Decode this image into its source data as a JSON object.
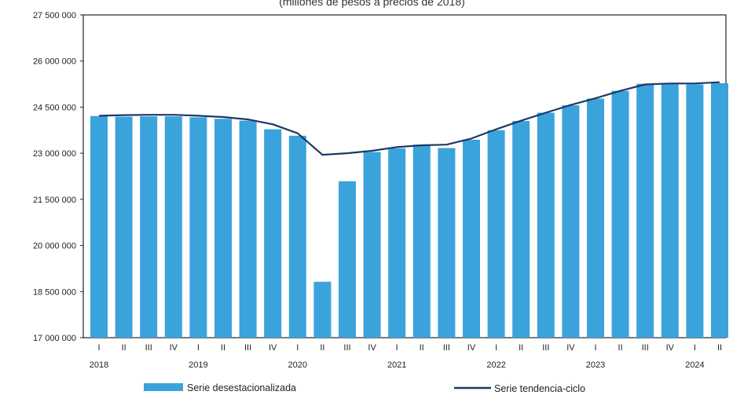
{
  "chart_data": {
    "type": "bar",
    "subtitle": "(millones de pesos a precios de 2018)",
    "ylim": [
      17000000,
      27500000
    ],
    "yticks": [
      "27 500 000",
      "26 000 000",
      "24 500 000",
      "23 000 000",
      "21 500 000",
      "20 000 000",
      "18 500 000",
      "17 000 000"
    ],
    "ytick_values": [
      27500000,
      26000000,
      24500000,
      23000000,
      21500000,
      20000000,
      18500000,
      17000000
    ],
    "categories": [
      "I",
      "II",
      "III",
      "IV",
      "I",
      "II",
      "III",
      "IV",
      "I",
      "II",
      "III",
      "IV",
      "I",
      "II",
      "III",
      "IV",
      "I",
      "II",
      "III",
      "IV",
      "I",
      "II",
      "III",
      "IV",
      "I",
      "II"
    ],
    "years": [
      {
        "label": "2018",
        "start_index": 0
      },
      {
        "label": "2019",
        "start_index": 4
      },
      {
        "label": "2020",
        "start_index": 8
      },
      {
        "label": "2021",
        "start_index": 12
      },
      {
        "label": "2022",
        "start_index": 16
      },
      {
        "label": "2023",
        "start_index": 20
      },
      {
        "label": "2024",
        "start_index": 24
      }
    ],
    "series": [
      {
        "name": "Serie desestacionalizada",
        "type": "bar",
        "color": "#3aa3dc",
        "values": [
          24210000,
          24190000,
          24200000,
          24200000,
          24170000,
          24120000,
          24060000,
          23780000,
          23570000,
          18820000,
          22090000,
          23040000,
          23160000,
          23280000,
          23170000,
          23440000,
          23750000,
          24050000,
          24320000,
          24560000,
          24780000,
          25030000,
          25260000,
          25250000,
          25240000,
          25280000
        ]
      },
      {
        "name": "Serie tendencia-ciclo",
        "type": "line",
        "color": "#1f3864",
        "values": [
          24220000,
          24240000,
          24250000,
          24250000,
          24220000,
          24180000,
          24100000,
          23940000,
          23650000,
          22950000,
          23000000,
          23080000,
          23200000,
          23260000,
          23280000,
          23480000,
          23780000,
          24060000,
          24320000,
          24570000,
          24790000,
          25030000,
          25240000,
          25270000,
          25270000,
          25310000
        ]
      }
    ]
  }
}
